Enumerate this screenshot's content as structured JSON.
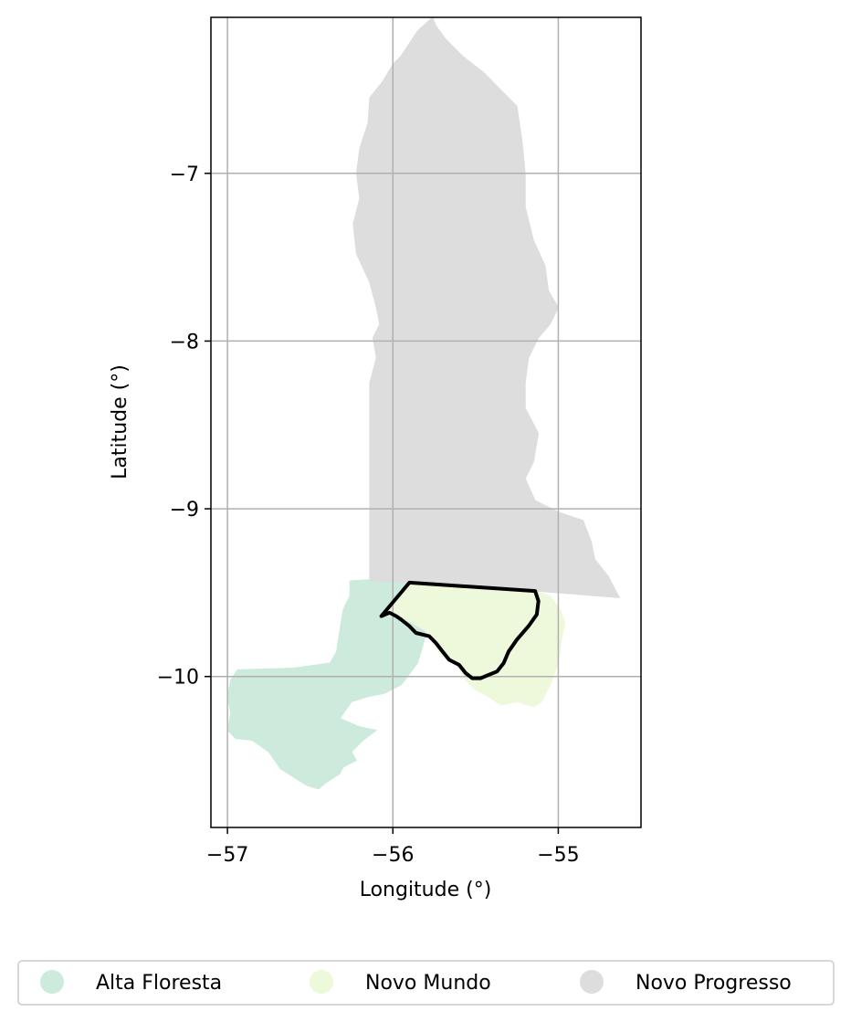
{
  "chart_data": {
    "type": "map",
    "xlabel": "Longitude (°)",
    "ylabel": "Latitude (°)",
    "xlim": [
      -57.1,
      -54.5
    ],
    "ylim": [
      -10.9,
      -6.07
    ],
    "xticks": [
      -57,
      -56,
      -55
    ],
    "yticks": [
      -7,
      -8,
      -9,
      -10
    ],
    "xtick_labels": [
      "−57",
      "−56",
      "−55"
    ],
    "ytick_labels": [
      "−7",
      "−8",
      "−9",
      "−10"
    ],
    "grid": true,
    "legend_position": "bottom-center",
    "regions": [
      {
        "name": "Alta Floresta",
        "color": "#cdebdc",
        "boundary": [
          [
            -56.26,
            -9.43
          ],
          [
            -56.1,
            -9.42
          ],
          [
            -55.9,
            -9.44
          ],
          [
            -55.86,
            -9.47
          ],
          [
            -55.82,
            -9.62
          ],
          [
            -55.8,
            -9.75
          ],
          [
            -55.85,
            -9.92
          ],
          [
            -55.95,
            -10.05
          ],
          [
            -56.05,
            -10.1
          ],
          [
            -56.15,
            -10.12
          ],
          [
            -56.25,
            -10.15
          ],
          [
            -56.32,
            -10.25
          ],
          [
            -56.2,
            -10.3
          ],
          [
            -56.1,
            -10.32
          ],
          [
            -56.18,
            -10.38
          ],
          [
            -56.25,
            -10.45
          ],
          [
            -56.22,
            -10.5
          ],
          [
            -56.3,
            -10.54
          ],
          [
            -56.32,
            -10.58
          ],
          [
            -56.4,
            -10.63
          ],
          [
            -56.45,
            -10.67
          ],
          [
            -56.52,
            -10.65
          ],
          [
            -56.6,
            -10.6
          ],
          [
            -56.68,
            -10.55
          ],
          [
            -56.75,
            -10.45
          ],
          [
            -56.85,
            -10.38
          ],
          [
            -56.95,
            -10.37
          ],
          [
            -57.0,
            -10.32
          ],
          [
            -56.98,
            -10.22
          ],
          [
            -57.0,
            -10.12
          ],
          [
            -56.98,
            -10.02
          ],
          [
            -56.94,
            -9.96
          ],
          [
            -56.6,
            -9.95
          ],
          [
            -56.38,
            -9.92
          ],
          [
            -56.34,
            -9.85
          ],
          [
            -56.32,
            -9.72
          ],
          [
            -56.3,
            -9.6
          ],
          [
            -56.26,
            -9.52
          ]
        ]
      },
      {
        "name": "Novo Mundo",
        "color": "#eef8da",
        "boundary": [
          [
            -56.07,
            -9.64
          ],
          [
            -55.9,
            -9.44
          ],
          [
            -55.14,
            -9.49
          ],
          [
            -55.05,
            -9.52
          ],
          [
            -54.99,
            -9.6
          ],
          [
            -54.96,
            -9.68
          ],
          [
            -54.98,
            -9.78
          ],
          [
            -55.0,
            -9.92
          ],
          [
            -55.05,
            -10.05
          ],
          [
            -55.1,
            -10.15
          ],
          [
            -55.15,
            -10.18
          ],
          [
            -55.25,
            -10.15
          ],
          [
            -55.35,
            -10.17
          ],
          [
            -55.42,
            -10.12
          ],
          [
            -55.5,
            -10.08
          ],
          [
            -55.56,
            -10.02
          ],
          [
            -55.6,
            -9.95
          ],
          [
            -55.7,
            -9.88
          ],
          [
            -55.76,
            -9.8
          ],
          [
            -55.8,
            -9.73
          ],
          [
            -55.88,
            -9.68
          ],
          [
            -55.98,
            -9.64
          ]
        ]
      },
      {
        "name": "Novo Progresso",
        "color": "#dddddd",
        "boundary": [
          [
            -56.14,
            -9.43
          ],
          [
            -56.14,
            -8.25
          ],
          [
            -56.1,
            -8.1
          ],
          [
            -56.12,
            -7.98
          ],
          [
            -56.08,
            -7.9
          ],
          [
            -56.1,
            -7.8
          ],
          [
            -56.14,
            -7.65
          ],
          [
            -56.22,
            -7.48
          ],
          [
            -56.24,
            -7.3
          ],
          [
            -56.2,
            -7.15
          ],
          [
            -56.22,
            -7.0
          ],
          [
            -56.2,
            -6.85
          ],
          [
            -56.15,
            -6.7
          ],
          [
            -56.14,
            -6.55
          ],
          [
            -56.06,
            -6.45
          ],
          [
            -56.0,
            -6.35
          ],
          [
            -55.95,
            -6.3
          ],
          [
            -55.85,
            -6.15
          ],
          [
            -55.76,
            -6.07
          ],
          [
            -55.74,
            -6.12
          ],
          [
            -55.68,
            -6.2
          ],
          [
            -55.58,
            -6.3
          ],
          [
            -55.45,
            -6.4
          ],
          [
            -55.35,
            -6.5
          ],
          [
            -55.25,
            -6.6
          ],
          [
            -55.22,
            -6.8
          ],
          [
            -55.2,
            -7.0
          ],
          [
            -55.2,
            -7.2
          ],
          [
            -55.15,
            -7.4
          ],
          [
            -55.08,
            -7.55
          ],
          [
            -55.06,
            -7.7
          ],
          [
            -55.0,
            -7.8
          ],
          [
            -55.05,
            -7.9
          ],
          [
            -55.12,
            -7.98
          ],
          [
            -55.18,
            -8.1
          ],
          [
            -55.2,
            -8.25
          ],
          [
            -55.2,
            -8.4
          ],
          [
            -55.12,
            -8.55
          ],
          [
            -55.15,
            -8.72
          ],
          [
            -55.2,
            -8.82
          ],
          [
            -55.14,
            -8.95
          ],
          [
            -55.0,
            -9.02
          ],
          [
            -54.85,
            -9.07
          ],
          [
            -54.8,
            -9.2
          ],
          [
            -54.78,
            -9.3
          ],
          [
            -54.7,
            -9.4
          ],
          [
            -54.63,
            -9.53
          ],
          [
            -55.14,
            -9.49
          ],
          [
            -55.9,
            -9.44
          ]
        ]
      }
    ],
    "highlight_outline": [
      [
        -56.07,
        -9.64
      ],
      [
        -55.9,
        -9.44
      ],
      [
        -55.14,
        -9.49
      ],
      [
        -55.12,
        -9.55
      ],
      [
        -55.13,
        -9.63
      ],
      [
        -55.18,
        -9.7
      ],
      [
        -55.25,
        -9.78
      ],
      [
        -55.3,
        -9.85
      ],
      [
        -55.33,
        -9.92
      ],
      [
        -55.37,
        -9.97
      ],
      [
        -55.42,
        -9.99
      ],
      [
        -55.47,
        -10.01
      ],
      [
        -55.52,
        -10.01
      ],
      [
        -55.56,
        -9.98
      ],
      [
        -55.6,
        -9.93
      ],
      [
        -55.66,
        -9.9
      ],
      [
        -55.7,
        -9.85
      ],
      [
        -55.74,
        -9.8
      ],
      [
        -55.78,
        -9.76
      ],
      [
        -55.86,
        -9.74
      ],
      [
        -55.9,
        -9.7
      ],
      [
        -55.95,
        -9.66
      ],
      [
        -55.98,
        -9.64
      ],
      [
        -56.02,
        -9.62
      ]
    ]
  },
  "legend": {
    "items": [
      {
        "label": "Alta Floresta",
        "color": "#cdebdc"
      },
      {
        "label": "Novo Mundo",
        "color": "#eef8da"
      },
      {
        "label": "Novo Progresso",
        "color": "#dddddd"
      }
    ]
  }
}
